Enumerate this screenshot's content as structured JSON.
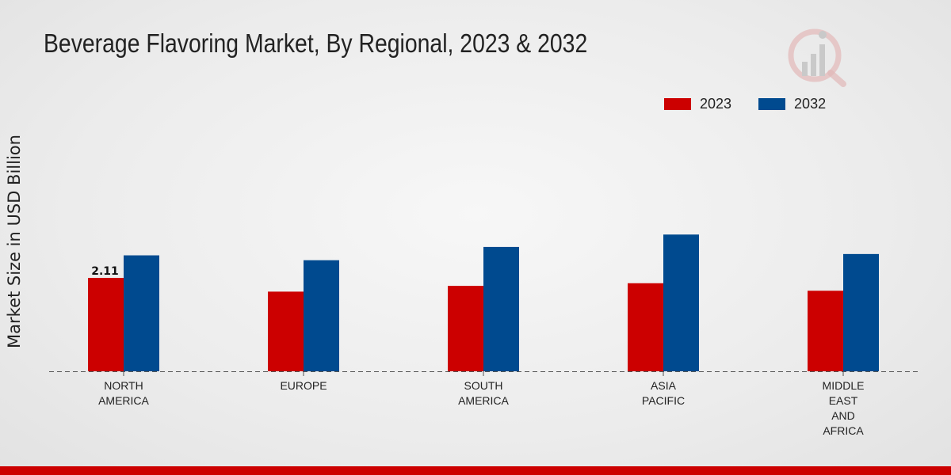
{
  "chart_data": {
    "type": "bar",
    "title": "Beverage Flavoring Market, By Regional, 2023 & 2032",
    "ylabel": "Market Size in USD Billion",
    "xlabel": "",
    "categories": [
      [
        "NORTH",
        "AMERICA"
      ],
      [
        "EUROPE"
      ],
      [
        "SOUTH",
        "AMERICA"
      ],
      [
        "ASIA",
        "PACIFIC"
      ],
      [
        "MIDDLE",
        "EAST",
        "AND",
        "AFRICA"
      ]
    ],
    "series": [
      {
        "name": "2023",
        "color": "#cc0000",
        "values": [
          2.11,
          1.8,
          1.93,
          1.99,
          1.82
        ]
      },
      {
        "name": "2032",
        "color": "#004a8f",
        "values": [
          2.62,
          2.51,
          2.81,
          3.09,
          2.65
        ]
      }
    ],
    "data_labels": [
      {
        "series": 0,
        "index": 0,
        "text": "2.11"
      }
    ],
    "ylim": [
      0,
      7.5
    ],
    "grid": false,
    "legend_position": "top-right"
  }
}
